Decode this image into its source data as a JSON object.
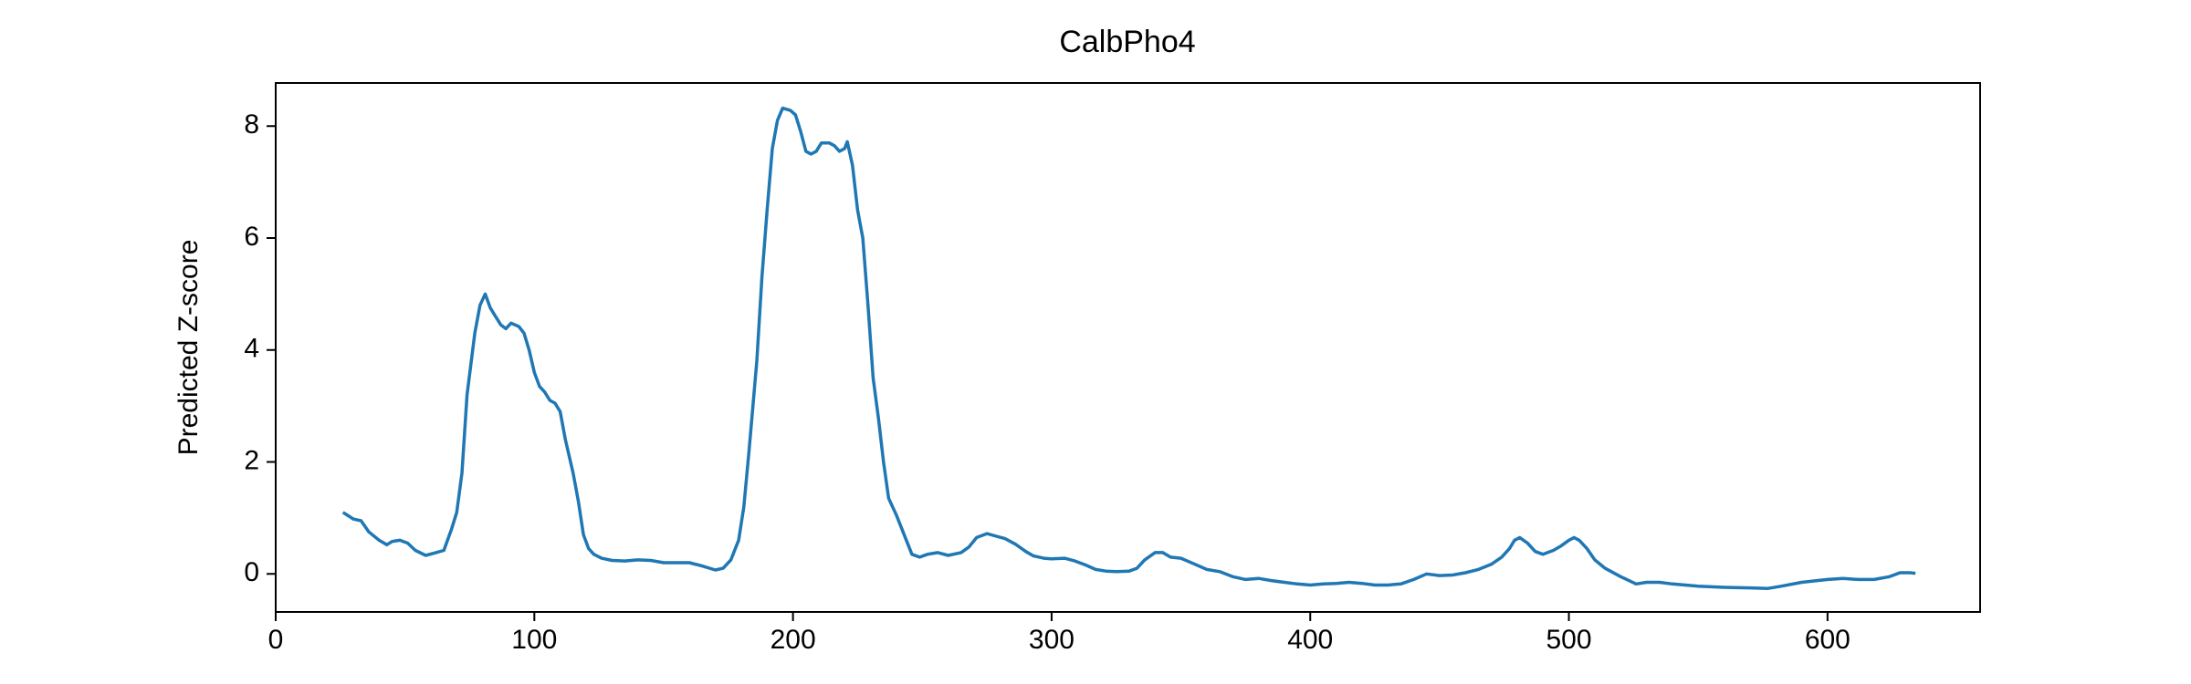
{
  "chart_data": {
    "type": "line",
    "title": "CalbPho4",
    "ylabel": "Predicted Z-score",
    "color": "#1f77b4",
    "x": [
      26,
      30,
      33,
      36,
      40,
      43,
      45,
      48,
      51,
      54,
      58,
      62,
      65,
      68,
      70,
      72,
      74,
      77,
      79,
      81,
      83,
      85,
      87,
      89,
      91,
      94,
      96,
      98,
      100,
      102,
      104,
      106,
      108,
      110,
      112,
      115,
      117,
      119,
      121,
      123,
      126,
      130,
      135,
      140,
      145,
      150,
      155,
      160,
      165,
      170,
      173,
      176,
      179,
      181,
      183,
      186,
      188,
      190,
      192,
      194,
      196,
      199,
      201,
      203,
      205,
      207,
      209,
      211,
      214,
      216,
      218,
      220,
      221,
      223,
      225,
      227,
      229,
      231,
      233,
      235,
      237,
      240,
      243,
      246,
      249,
      252,
      256,
      260,
      265,
      268,
      271,
      275,
      278,
      282,
      286,
      290,
      293,
      297,
      300,
      305,
      309,
      313,
      317,
      321,
      325,
      330,
      333,
      336,
      340,
      343,
      346,
      350,
      355,
      360,
      365,
      370,
      375,
      380,
      385,
      390,
      395,
      400,
      405,
      410,
      415,
      420,
      425,
      430,
      435,
      440,
      445,
      450,
      455,
      460,
      465,
      470,
      474,
      477,
      479,
      481,
      484,
      487,
      490,
      494,
      497,
      500,
      502,
      504,
      507,
      510,
      514,
      520,
      526,
      530,
      535,
      540,
      550,
      560,
      570,
      577,
      582,
      590,
      600,
      606,
      612,
      618,
      624,
      628,
      632,
      634
    ],
    "values": [
      1.1,
      0.98,
      0.95,
      0.75,
      0.6,
      0.52,
      0.58,
      0.6,
      0.55,
      0.42,
      0.33,
      0.38,
      0.42,
      0.8,
      1.1,
      1.8,
      3.2,
      4.3,
      4.8,
      5.0,
      4.75,
      4.6,
      4.45,
      4.38,
      4.48,
      4.42,
      4.3,
      4.0,
      3.6,
      3.35,
      3.25,
      3.1,
      3.05,
      2.9,
      2.4,
      1.8,
      1.3,
      0.7,
      0.45,
      0.35,
      0.28,
      0.24,
      0.23,
      0.25,
      0.24,
      0.2,
      0.2,
      0.2,
      0.14,
      0.07,
      0.1,
      0.25,
      0.6,
      1.2,
      2.2,
      3.8,
      5.3,
      6.5,
      7.6,
      8.1,
      8.32,
      8.28,
      8.2,
      7.9,
      7.55,
      7.5,
      7.55,
      7.7,
      7.7,
      7.65,
      7.55,
      7.6,
      7.72,
      7.3,
      6.5,
      6.0,
      4.8,
      3.5,
      2.8,
      2.0,
      1.35,
      1.05,
      0.7,
      0.35,
      0.3,
      0.35,
      0.38,
      0.33,
      0.38,
      0.48,
      0.65,
      0.72,
      0.68,
      0.63,
      0.53,
      0.4,
      0.32,
      0.28,
      0.27,
      0.28,
      0.23,
      0.16,
      0.08,
      0.05,
      0.04,
      0.05,
      0.1,
      0.25,
      0.38,
      0.38,
      0.3,
      0.28,
      0.18,
      0.08,
      0.04,
      -0.05,
      -0.1,
      -0.08,
      -0.12,
      -0.15,
      -0.18,
      -0.2,
      -0.18,
      -0.17,
      -0.15,
      -0.17,
      -0.2,
      -0.2,
      -0.18,
      -0.1,
      0.0,
      -0.03,
      -0.02,
      0.02,
      0.08,
      0.17,
      0.3,
      0.45,
      0.6,
      0.65,
      0.55,
      0.4,
      0.35,
      0.42,
      0.5,
      0.6,
      0.65,
      0.6,
      0.45,
      0.25,
      0.1,
      -0.05,
      -0.18,
      -0.15,
      -0.15,
      -0.18,
      -0.22,
      -0.24,
      -0.25,
      -0.26,
      -0.22,
      -0.15,
      -0.1,
      -0.08,
      -0.1,
      -0.1,
      -0.05,
      0.02,
      0.02,
      0.01
    ],
    "xlim": [
      0,
      659
    ],
    "xticks": [
      0,
      100,
      200,
      300,
      400,
      500,
      600
    ],
    "ylim": [
      -0.68,
      8.77
    ],
    "yticks": [
      0,
      2,
      4,
      6,
      8
    ]
  }
}
